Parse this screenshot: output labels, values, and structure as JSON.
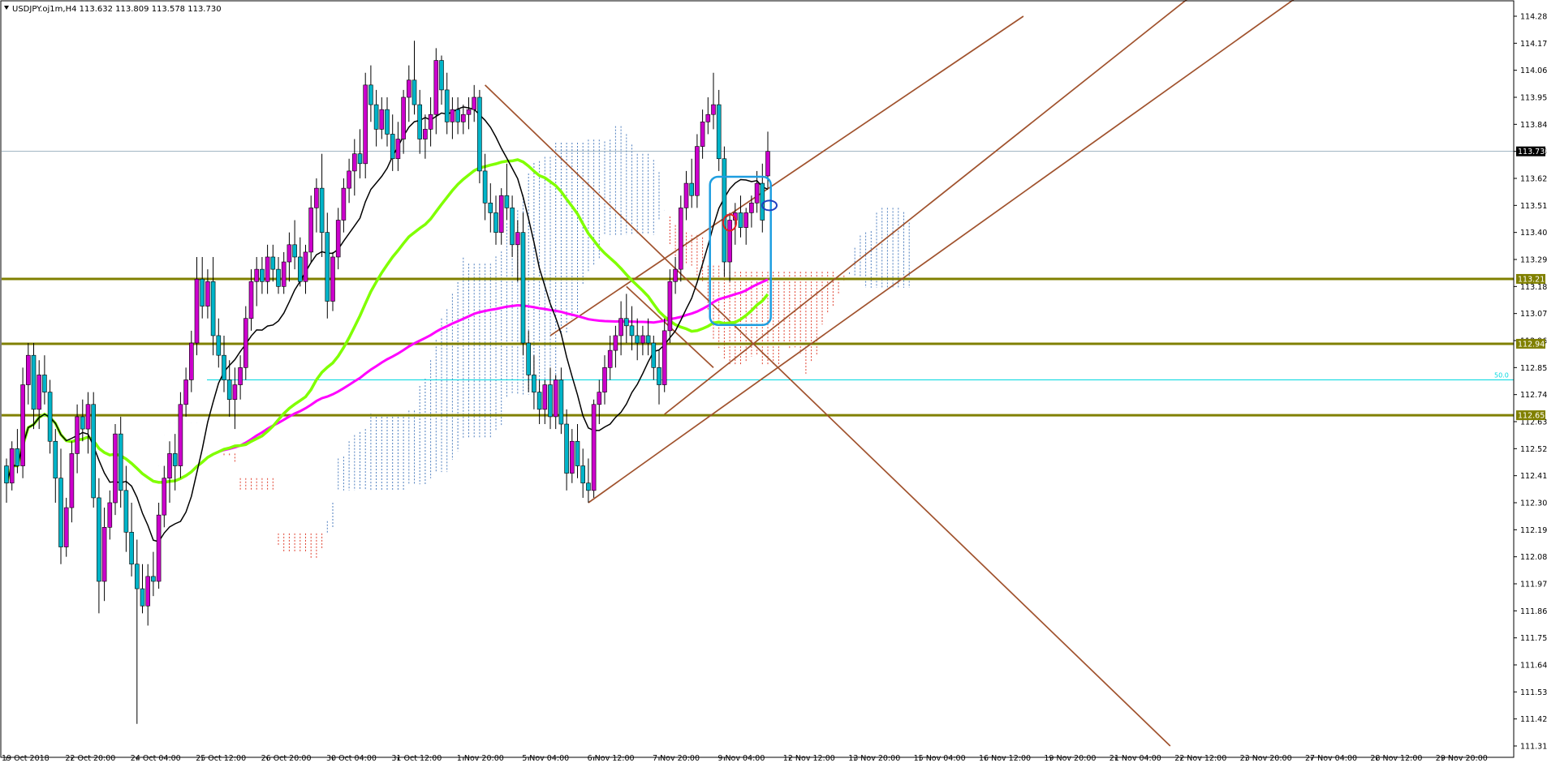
{
  "chart_data": {
    "type": "candlestick",
    "symbol_info": "USDJPY.oj1m,H4  113.632 113.809 113.578 113.730",
    "current_price": 113.73,
    "y_range": [
      111.31,
      114.28
    ],
    "y_ticks": [
      "114.280",
      "114.170",
      "114.060",
      "113.950",
      "113.840",
      "113.730",
      "113.620",
      "113.510",
      "113.400",
      "113.290",
      "113.180",
      "113.070",
      "112.960",
      "112.850",
      "112.740",
      "112.630",
      "112.520",
      "112.410",
      "112.300",
      "112.190",
      "112.080",
      "111.970",
      "111.860",
      "111.750",
      "111.640",
      "111.530",
      "111.420",
      "111.310"
    ],
    "x_ticks": [
      "19 Oct 2018",
      "22 Oct 20:00",
      "24 Oct 04:00",
      "25 Oct 12:00",
      "26 Oct 20:00",
      "30 Oct 04:00",
      "31 Oct 12:00",
      "1 Nov 20:00",
      "5 Nov 04:00",
      "6 Nov 12:00",
      "7 Nov 20:00",
      "9 Nov 04:00",
      "12 Nov 12:00",
      "13 Nov 20:00",
      "15 Nov 04:00",
      "16 Nov 12:00",
      "19 Nov 20:00",
      "21 Nov 04:00",
      "22 Nov 12:00",
      "23 Nov 20:00",
      "27 Nov 04:00",
      "28 Nov 12:00",
      "29 Nov 20:00"
    ],
    "horizontal_levels": [
      {
        "label": "113.211",
        "price": 113.211,
        "color": "#808000"
      },
      {
        "label": "112.947",
        "price": 112.947,
        "color": "#808000"
      },
      {
        "label": "112.656",
        "price": 112.656,
        "color": "#808000"
      }
    ],
    "fib_level": {
      "label": "50.0",
      "price": 112.8,
      "color": "#00d8e0"
    },
    "price_tag": {
      "label": "113.730",
      "price": 113.73
    },
    "bull_color": "#cc00cc",
    "bear_color": "#00b4c8",
    "ma_fast_color": "#000000",
    "ma_mid_color": "#80ff00",
    "ma_slow_color": "#ff00ff",
    "trendline_color": "#a0522d",
    "highlight_box_color": "#1e9ee0",
    "grid": false,
    "candles": [
      [
        112.45,
        112.48,
        112.3,
        112.38
      ],
      [
        112.38,
        112.55,
        112.35,
        112.52
      ],
      [
        112.52,
        112.6,
        112.42,
        112.45
      ],
      [
        112.45,
        112.85,
        112.4,
        112.78
      ],
      [
        112.78,
        112.95,
        112.7,
        112.9
      ],
      [
        112.9,
        112.95,
        112.6,
        112.68
      ],
      [
        112.68,
        112.88,
        112.6,
        112.82
      ],
      [
        112.82,
        112.9,
        112.7,
        112.75
      ],
      [
        112.75,
        112.8,
        112.5,
        112.55
      ],
      [
        112.55,
        112.6,
        112.3,
        112.4
      ],
      [
        112.4,
        112.52,
        112.05,
        112.12
      ],
      [
        112.12,
        112.32,
        112.08,
        112.28
      ],
      [
        112.28,
        112.55,
        112.22,
        112.5
      ],
      [
        112.5,
        112.7,
        112.42,
        112.65
      ],
      [
        112.65,
        112.72,
        112.55,
        112.6
      ],
      [
        112.6,
        112.75,
        112.5,
        112.7
      ],
      [
        112.7,
        112.75,
        112.28,
        112.32
      ],
      [
        112.32,
        112.4,
        111.85,
        111.98
      ],
      [
        111.98,
        112.28,
        111.9,
        112.2
      ],
      [
        112.2,
        112.35,
        112.15,
        112.3
      ],
      [
        112.3,
        112.62,
        112.25,
        112.58
      ],
      [
        112.58,
        112.65,
        112.28,
        112.35
      ],
      [
        112.35,
        112.45,
        112.1,
        112.18
      ],
      [
        112.18,
        112.3,
        112.0,
        112.05
      ],
      [
        112.05,
        112.15,
        111.4,
        111.95
      ],
      [
        111.95,
        112.05,
        111.85,
        111.88
      ],
      [
        111.88,
        112.05,
        111.8,
        112.0
      ],
      [
        112.0,
        112.1,
        111.92,
        111.98
      ],
      [
        111.98,
        112.3,
        111.95,
        112.25
      ],
      [
        112.25,
        112.45,
        112.2,
        112.4
      ],
      [
        112.4,
        112.55,
        112.3,
        112.5
      ],
      [
        112.5,
        112.58,
        112.35,
        112.45
      ],
      [
        112.45,
        112.75,
        112.4,
        112.7
      ],
      [
        112.7,
        112.85,
        112.65,
        112.8
      ],
      [
        112.8,
        113.0,
        112.75,
        112.95
      ],
      [
        112.95,
        113.3,
        112.9,
        113.21
      ],
      [
        113.21,
        113.3,
        113.05,
        113.1
      ],
      [
        113.1,
        113.25,
        113.05,
        113.2
      ],
      [
        113.2,
        113.3,
        112.9,
        112.98
      ],
      [
        112.98,
        113.05,
        112.85,
        112.9
      ],
      [
        112.9,
        112.98,
        112.75,
        112.8
      ],
      [
        112.8,
        112.88,
        112.65,
        112.72
      ],
      [
        112.72,
        112.85,
        112.6,
        112.78
      ],
      [
        112.78,
        112.9,
        112.72,
        112.85
      ],
      [
        112.85,
        113.1,
        112.8,
        113.05
      ],
      [
        113.05,
        113.25,
        113.0,
        113.2
      ],
      [
        113.2,
        113.3,
        113.1,
        113.25
      ],
      [
        113.25,
        113.3,
        113.15,
        113.2
      ],
      [
        113.2,
        113.35,
        113.15,
        113.3
      ],
      [
        113.3,
        113.35,
        113.2,
        113.25
      ],
      [
        113.25,
        113.3,
        113.15,
        113.18
      ],
      [
        113.18,
        113.32,
        113.15,
        113.28
      ],
      [
        113.28,
        113.4,
        113.2,
        113.35
      ],
      [
        113.35,
        113.45,
        113.25,
        113.3
      ],
      [
        113.3,
        113.38,
        113.18,
        113.2
      ],
      [
        113.2,
        113.35,
        113.15,
        113.32
      ],
      [
        113.32,
        113.55,
        113.28,
        113.5
      ],
      [
        113.5,
        113.62,
        113.4,
        113.58
      ],
      [
        113.58,
        113.72,
        113.3,
        113.4
      ],
      [
        113.4,
        113.48,
        113.05,
        113.12
      ],
      [
        113.12,
        113.32,
        113.08,
        113.3
      ],
      [
        113.3,
        113.5,
        113.25,
        113.45
      ],
      [
        113.45,
        113.62,
        113.4,
        113.58
      ],
      [
        113.58,
        113.7,
        113.52,
        113.65
      ],
      [
        113.65,
        113.78,
        113.55,
        113.72
      ],
      [
        113.72,
        113.82,
        113.62,
        113.68
      ],
      [
        113.68,
        114.05,
        113.62,
        114.0
      ],
      [
        114.0,
        114.08,
        113.85,
        113.92
      ],
      [
        113.92,
        113.98,
        113.75,
        113.82
      ],
      [
        113.82,
        113.95,
        113.78,
        113.9
      ],
      [
        113.9,
        113.95,
        113.75,
        113.8
      ],
      [
        113.8,
        113.88,
        113.65,
        113.7
      ],
      [
        113.7,
        113.85,
        113.65,
        113.78
      ],
      [
        113.78,
        113.98,
        113.72,
        113.95
      ],
      [
        113.95,
        114.08,
        113.85,
        114.02
      ],
      [
        114.02,
        114.18,
        113.88,
        113.92
      ],
      [
        113.92,
        113.98,
        113.72,
        113.78
      ],
      [
        113.78,
        113.88,
        113.7,
        113.82
      ],
      [
        113.82,
        113.95,
        113.75,
        113.88
      ],
      [
        113.88,
        114.15,
        113.8,
        114.1
      ],
      [
        114.1,
        114.12,
        113.92,
        113.98
      ],
      [
        113.98,
        114.05,
        113.8,
        113.85
      ],
      [
        113.85,
        113.95,
        113.78,
        113.9
      ],
      [
        113.9,
        113.95,
        113.8,
        113.85
      ],
      [
        113.85,
        113.92,
        113.8,
        113.88
      ],
      [
        113.88,
        113.95,
        113.82,
        113.9
      ],
      [
        113.9,
        114.0,
        113.85,
        113.95
      ],
      [
        113.95,
        113.98,
        113.6,
        113.65
      ],
      [
        113.65,
        113.72,
        113.45,
        113.52
      ],
      [
        113.52,
        113.6,
        113.4,
        113.48
      ],
      [
        113.48,
        113.55,
        113.35,
        113.4
      ],
      [
        113.4,
        113.58,
        113.35,
        113.55
      ],
      [
        113.55,
        113.68,
        113.45,
        113.5
      ],
      [
        113.5,
        113.55,
        113.3,
        113.35
      ],
      [
        113.35,
        113.45,
        113.2,
        113.4
      ],
      [
        113.4,
        113.48,
        112.9,
        112.95
      ],
      [
        112.95,
        113.0,
        112.75,
        112.82
      ],
      [
        112.82,
        112.9,
        112.68,
        112.75
      ],
      [
        112.75,
        112.8,
        112.62,
        112.68
      ],
      [
        112.68,
        112.8,
        112.62,
        112.78
      ],
      [
        112.78,
        112.85,
        112.6,
        112.65
      ],
      [
        112.65,
        112.82,
        112.6,
        112.8
      ],
      [
        112.8,
        112.85,
        112.58,
        112.62
      ],
      [
        112.62,
        112.68,
        112.35,
        112.42
      ],
      [
        112.42,
        112.6,
        112.38,
        112.55
      ],
      [
        112.55,
        112.62,
        112.4,
        112.45
      ],
      [
        112.45,
        112.52,
        112.32,
        112.38
      ],
      [
        112.38,
        112.48,
        112.3,
        112.35
      ],
      [
        112.35,
        112.72,
        112.32,
        112.7
      ],
      [
        112.7,
        112.8,
        112.62,
        112.75
      ],
      [
        112.75,
        112.9,
        112.7,
        112.85
      ],
      [
        112.85,
        112.98,
        112.8,
        112.92
      ],
      [
        112.92,
        113.02,
        112.85,
        112.98
      ],
      [
        112.98,
        113.12,
        112.9,
        113.05
      ],
      [
        113.05,
        113.15,
        112.95,
        113.02
      ],
      [
        113.02,
        113.1,
        112.92,
        112.98
      ],
      [
        112.98,
        113.05,
        112.88,
        112.95
      ],
      [
        112.95,
        113.02,
        112.9,
        112.98
      ],
      [
        112.98,
        113.05,
        112.9,
        112.95
      ],
      [
        112.95,
        112.98,
        112.8,
        112.85
      ],
      [
        112.85,
        112.92,
        112.7,
        112.78
      ],
      [
        112.78,
        113.05,
        112.75,
        113.0
      ],
      [
        113.0,
        113.25,
        112.95,
        113.2
      ],
      [
        113.2,
        113.3,
        113.15,
        113.25
      ],
      [
        113.25,
        113.55,
        113.2,
        113.5
      ],
      [
        113.5,
        113.65,
        113.45,
        113.6
      ],
      [
        113.6,
        113.7,
        113.5,
        113.55
      ],
      [
        113.55,
        113.8,
        113.5,
        113.75
      ],
      [
        113.75,
        113.9,
        113.7,
        113.85
      ],
      [
        113.85,
        113.95,
        113.8,
        113.88
      ],
      [
        113.88,
        114.05,
        113.82,
        113.92
      ],
      [
        113.92,
        113.98,
        113.65,
        113.7
      ],
      [
        113.7,
        113.75,
        113.22,
        113.28
      ],
      [
        113.28,
        113.48,
        113.2,
        113.45
      ],
      [
        113.45,
        113.52,
        113.35,
        113.48
      ],
      [
        113.48,
        113.55,
        113.38,
        113.42
      ],
      [
        113.42,
        113.5,
        113.35,
        113.48
      ],
      [
        113.48,
        113.55,
        113.42,
        113.52
      ],
      [
        113.52,
        113.65,
        113.48,
        113.6
      ],
      [
        113.6,
        113.68,
        113.4,
        113.45
      ],
      [
        113.63,
        113.81,
        113.58,
        113.73
      ]
    ]
  }
}
